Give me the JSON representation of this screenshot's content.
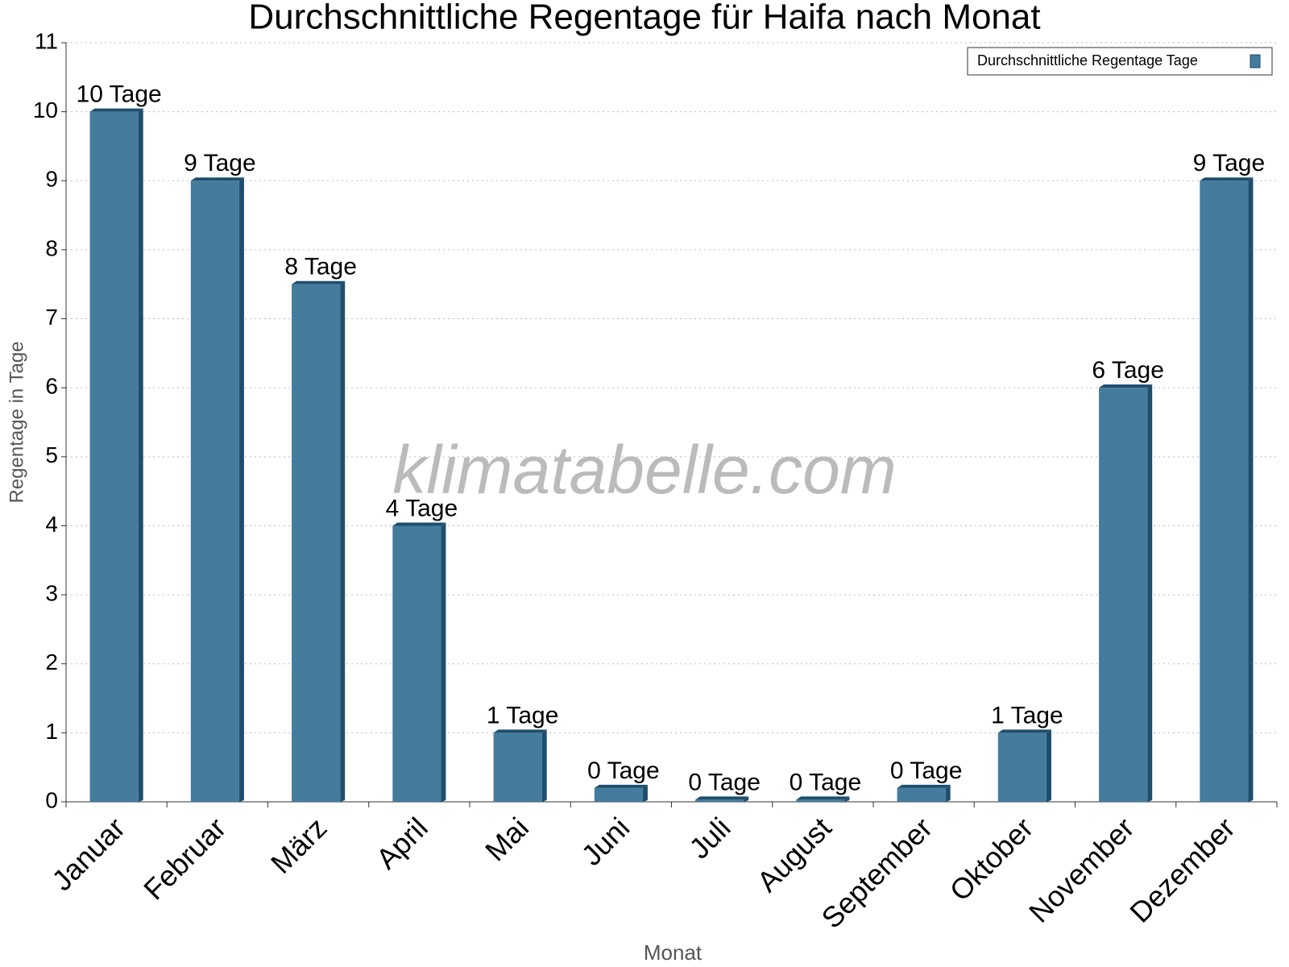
{
  "chart_data": {
    "type": "bar",
    "title": "Durchschnittliche Regentage für Haifa nach Monat",
    "x_label": "Monat",
    "y_label": "Regentage in Tage",
    "watermark": "klimatabelle.com",
    "categories": [
      "Januar",
      "Februar",
      "März",
      "April",
      "Mai",
      "Juni",
      "Juli",
      "August",
      "September",
      "Oktober",
      "November",
      "Dezember"
    ],
    "series": [
      {
        "name": "Durchschnittliche Regentage Tage",
        "color": "#457b9d",
        "values": [
          10,
          9,
          7.5,
          4,
          1,
          0.2,
          0.03,
          0.03,
          0.2,
          1,
          6,
          9
        ],
        "value_labels": [
          "10 Tage",
          "9 Tage",
          "8 Tage",
          "4 Tage",
          "1 Tage",
          "0 Tage",
          "0 Tage",
          "0 Tage",
          "0 Tage",
          "1 Tage",
          "6 Tage",
          "9 Tage"
        ]
      }
    ],
    "ylim": [
      0,
      11
    ],
    "yticks": [
      0,
      1,
      2,
      3,
      4,
      5,
      6,
      7,
      8,
      9,
      10,
      11
    ],
    "grid": true,
    "legend": "top-right"
  }
}
